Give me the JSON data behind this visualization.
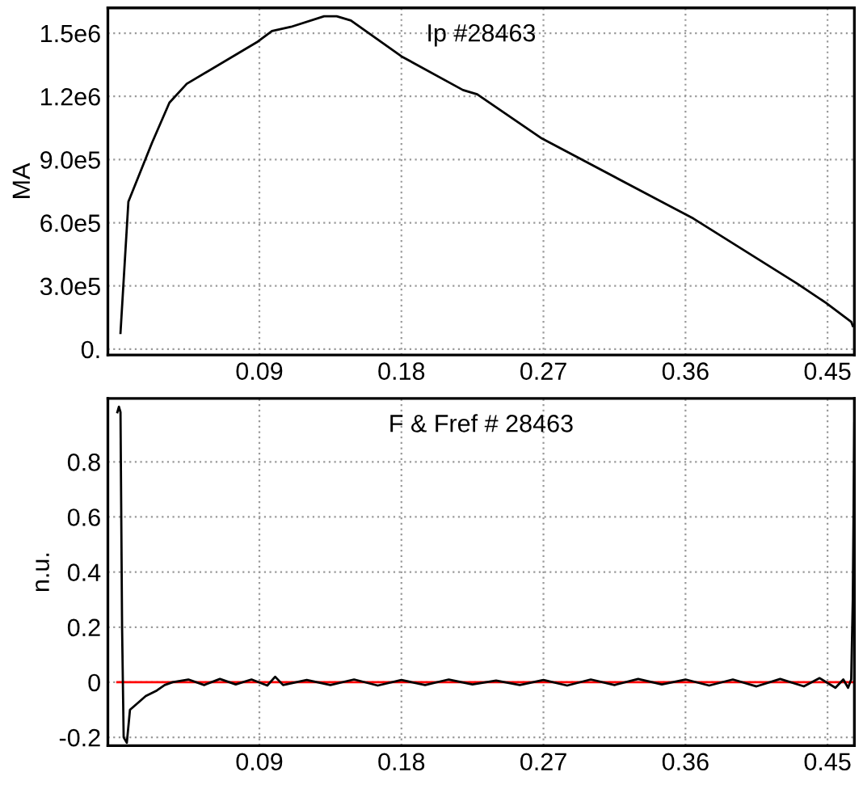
{
  "chart_data": [
    {
      "type": "line",
      "title": "Ip #28463",
      "ylabel": "MA",
      "xlim": [
        -0.006,
        0.467
      ],
      "ylim": [
        -28000,
        1620000
      ],
      "xticks": [
        0.09,
        0.18,
        0.27,
        0.36,
        0.45
      ],
      "yticks": [
        {
          "value": 0,
          "label": "0."
        },
        {
          "value": 300000,
          "label": "3.0e5"
        },
        {
          "value": 600000,
          "label": "6.0e5"
        },
        {
          "value": 900000,
          "label": "9.0e5"
        },
        {
          "value": 1200000,
          "label": "1.2e6"
        },
        {
          "value": 1500000,
          "label": "1.5e6"
        }
      ],
      "grid": true,
      "series": [
        {
          "color": "#000000",
          "x": [
            0.002,
            0.007,
            0.022,
            0.033,
            0.044,
            0.089,
            0.098,
            0.11,
            0.131,
            0.139,
            0.148,
            0.18,
            0.219,
            0.228,
            0.269,
            0.365,
            0.431,
            0.449,
            0.465,
            0.466
          ],
          "values": [
            77000,
            700000,
            980000,
            1170000,
            1260000,
            1460000,
            1510000,
            1530000,
            1580000,
            1580000,
            1560000,
            1390000,
            1230000,
            1210000,
            1000000,
            620000,
            310000,
            220000,
            130000,
            110000
          ]
        }
      ]
    },
    {
      "type": "line",
      "title": "F & Fref # 28463",
      "ylabel": "n.u.",
      "xlim": [
        -0.006,
        0.467
      ],
      "ylim": [
        -0.23,
        1.03
      ],
      "xticks": [
        0.09,
        0.18,
        0.27,
        0.36,
        0.45
      ],
      "yticks": [
        {
          "value": -0.2,
          "label": "-0.2"
        },
        0,
        0.2,
        0.4,
        0.6,
        0.8
      ],
      "grid": true,
      "series": [
        {
          "color": "#ff0000",
          "x": [
            0,
            0.467
          ],
          "values": [
            0,
            0
          ]
        },
        {
          "color": "#000000",
          "x": [
            0,
            0.001,
            0.002,
            0.003,
            0.004,
            0.006,
            0.008,
            0.012,
            0.018,
            0.025,
            0.03,
            0.035,
            0.045,
            0.055,
            0.065,
            0.075,
            0.085,
            0.095,
            0.1,
            0.105,
            0.12,
            0.135,
            0.15,
            0.165,
            0.18,
            0.195,
            0.21,
            0.225,
            0.24,
            0.255,
            0.27,
            0.285,
            0.3,
            0.315,
            0.33,
            0.345,
            0.36,
            0.375,
            0.39,
            0.405,
            0.42,
            0.435,
            0.445,
            0.455,
            0.46,
            0.463,
            0.465,
            0.466,
            0.467
          ],
          "values": [
            0.98,
            1.0,
            0.98,
            0.2,
            -0.2,
            -0.22,
            -0.1,
            -0.08,
            -0.05,
            -0.03,
            -0.01,
            0.0,
            0.01,
            -0.01,
            0.012,
            -0.008,
            0.01,
            -0.012,
            0.02,
            -0.01,
            0.008,
            -0.01,
            0.01,
            -0.012,
            0.008,
            -0.01,
            0.01,
            -0.008,
            0.006,
            -0.01,
            0.008,
            -0.012,
            0.01,
            -0.01,
            0.012,
            -0.008,
            0.01,
            -0.012,
            0.01,
            -0.015,
            0.012,
            -0.015,
            0.015,
            -0.02,
            0.01,
            -0.02,
            0.01,
            0.3,
            0.94
          ]
        }
      ]
    }
  ]
}
